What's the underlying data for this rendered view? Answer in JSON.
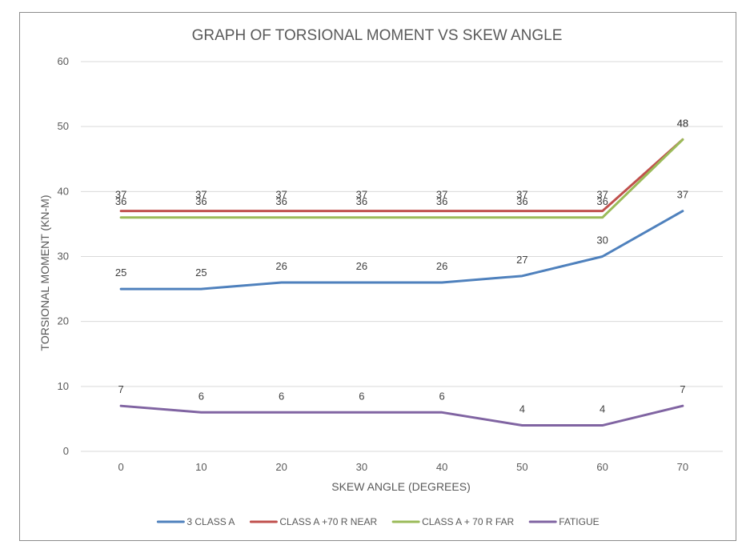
{
  "chart_data": {
    "type": "line",
    "title": "GRAPH OF TORSIONAL MOMENT VS SKEW ANGLE",
    "xlabel": "SKEW ANGLE (DEGREES)",
    "ylabel": "TORSIONAL MOMENT (KN-M)",
    "x": [
      0,
      10,
      20,
      30,
      40,
      50,
      60,
      70
    ],
    "ylim": [
      0,
      60
    ],
    "yticks": [
      0,
      10,
      20,
      30,
      40,
      50,
      60
    ],
    "grid": true,
    "legend_position": "bottom",
    "series": [
      {
        "name": "3 CLASS A",
        "color": "#4f81bd",
        "values": [
          25,
          25,
          26,
          26,
          26,
          27,
          30,
          37
        ]
      },
      {
        "name": "CLASS A +70 R NEAR",
        "color": "#c0504d",
        "values": [
          37,
          37,
          37,
          37,
          37,
          37,
          37,
          48
        ]
      },
      {
        "name": "CLASS A + 70 R  FAR",
        "color": "#9bbb59",
        "values": [
          36,
          36,
          36,
          36,
          36,
          36,
          36,
          48
        ]
      },
      {
        "name": "FATIGUE",
        "color": "#8064a2",
        "values": [
          7,
          6,
          6,
          6,
          6,
          4,
          4,
          7
        ]
      }
    ]
  }
}
